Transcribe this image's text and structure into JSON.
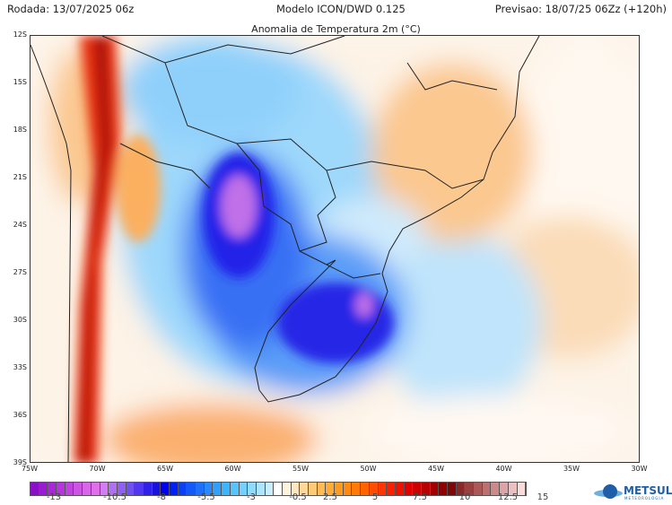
{
  "header": {
    "run": "Rodada: 13/07/2025 06z",
    "model": "Modelo ICON/DWD 0.125",
    "forecast": "Previsao: 18/07/25 06Zz (+120h)"
  },
  "map": {
    "title": "Anomalia de Temperatura 2m (°C)",
    "lat_labels": [
      "12S",
      "15S",
      "18S",
      "21S",
      "24S",
      "27S",
      "30S",
      "33S",
      "36S",
      "39S"
    ],
    "lon_labels": [
      "75W",
      "70W",
      "65W",
      "60W",
      "55W",
      "50W",
      "45W",
      "40W",
      "35W",
      "30W"
    ]
  },
  "colorbar": {
    "labels": [
      "-13",
      "-10.5",
      "-8",
      "-5.5",
      "-3",
      "-0.5",
      "2.5",
      "5",
      "7.5",
      "10",
      "12.5",
      "15"
    ],
    "colors": [
      "#8a10c8",
      "#9a1cd0",
      "#a828d6",
      "#b436dc",
      "#c044e0",
      "#cc55e4",
      "#d866e8",
      "#e070ea",
      "#d27ef0",
      "#b070f0",
      "#9060f0",
      "#7050f0",
      "#5038f0",
      "#3020e8",
      "#1a10e0",
      "#0000f0",
      "#0020f4",
      "#0a40f6",
      "#1458f8",
      "#1e70fa",
      "#2888fc",
      "#30a0fd",
      "#3cb4fe",
      "#58c4fe",
      "#74d0fe",
      "#90dcfe",
      "#acE6fe",
      "#c8eefe",
      "#ffffff",
      "#fff3dc",
      "#ffe6bc",
      "#ffd89a",
      "#ffca78",
      "#ffbb55",
      "#ffac38",
      "#ff9c20",
      "#ff8c10",
      "#ff7a08",
      "#ff6400",
      "#ff4e00",
      "#ff3600",
      "#f82000",
      "#ee1000",
      "#e00000",
      "#cc0000",
      "#b80000",
      "#a40000",
      "#900000",
      "#7c0808",
      "#882828",
      "#9a4040",
      "#aa5858",
      "#bc7070",
      "#cc8a8a",
      "#dca4a4",
      "#ecc0c0",
      "#f8dcdc"
    ],
    "unit": "°C"
  },
  "logo": {
    "name": "METSUL",
    "sub": "METEOROLOGIA"
  }
}
